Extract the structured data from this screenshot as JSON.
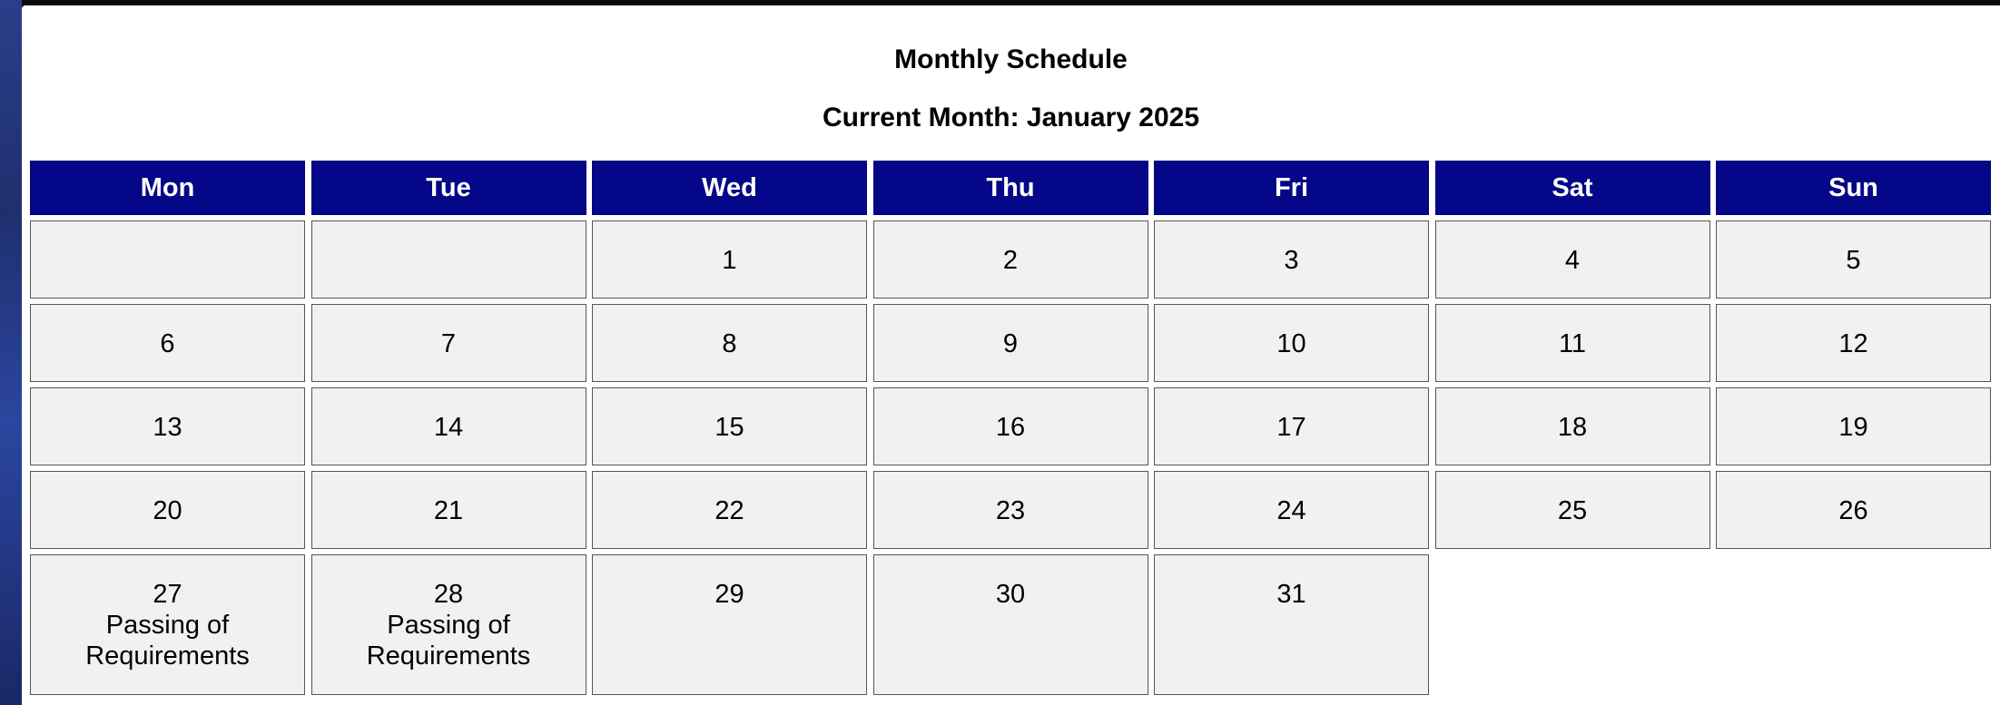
{
  "calendar": {
    "title": "Monthly Schedule",
    "current_month": "Current Month: January 2025",
    "weekdays": [
      "Mon",
      "Tue",
      "Wed",
      "Thu",
      "Fri",
      "Sat",
      "Sun"
    ],
    "weeks": [
      [
        {
          "day": "",
          "event": ""
        },
        {
          "day": "",
          "event": ""
        },
        {
          "day": "1",
          "event": ""
        },
        {
          "day": "2",
          "event": ""
        },
        {
          "day": "3",
          "event": ""
        },
        {
          "day": "4",
          "event": ""
        },
        {
          "day": "5",
          "event": ""
        }
      ],
      [
        {
          "day": "6",
          "event": ""
        },
        {
          "day": "7",
          "event": ""
        },
        {
          "day": "8",
          "event": ""
        },
        {
          "day": "9",
          "event": ""
        },
        {
          "day": "10",
          "event": ""
        },
        {
          "day": "11",
          "event": ""
        },
        {
          "day": "12",
          "event": ""
        }
      ],
      [
        {
          "day": "13",
          "event": ""
        },
        {
          "day": "14",
          "event": ""
        },
        {
          "day": "15",
          "event": ""
        },
        {
          "day": "16",
          "event": ""
        },
        {
          "day": "17",
          "event": ""
        },
        {
          "day": "18",
          "event": ""
        },
        {
          "day": "19",
          "event": ""
        }
      ],
      [
        {
          "day": "20",
          "event": ""
        },
        {
          "day": "21",
          "event": ""
        },
        {
          "day": "22",
          "event": ""
        },
        {
          "day": "23",
          "event": ""
        },
        {
          "day": "24",
          "event": ""
        },
        {
          "day": "25",
          "event": ""
        },
        {
          "day": "26",
          "event": ""
        }
      ],
      [
        {
          "day": "27",
          "event": "Passing of Requirements"
        },
        {
          "day": "28",
          "event": "Passing of Requirements"
        },
        {
          "day": "29",
          "event": ""
        },
        {
          "day": "30",
          "event": ""
        },
        {
          "day": "31",
          "event": ""
        }
      ]
    ],
    "colors": {
      "header_bg": "#040787",
      "header_text": "#ffffff",
      "cell_bg": "#f1f1f1",
      "cell_border": "#555555"
    }
  }
}
